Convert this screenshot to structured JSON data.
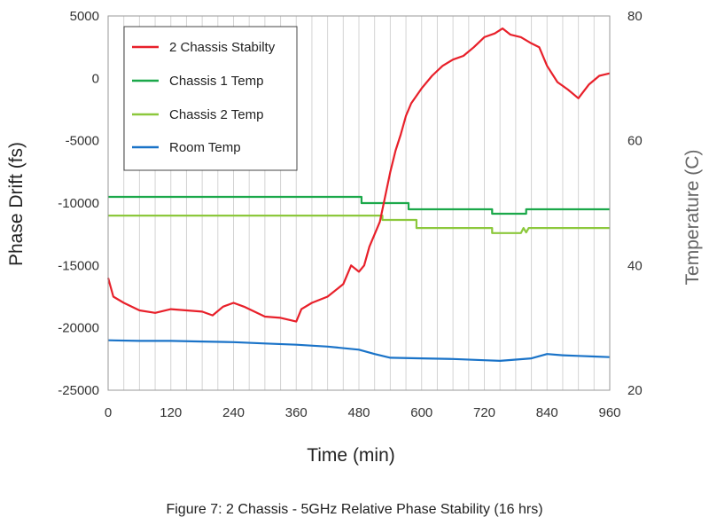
{
  "caption": "Figure 7:  2 Chassis - 5GHz Relative Phase Stability (16 hrs)",
  "chart_data": {
    "type": "line",
    "title": "",
    "xlabel": "Time (min)",
    "ylabel": "Phase Drift (fs)",
    "y2label": "Temperature (C)",
    "xlim": [
      0,
      960
    ],
    "ylim": [
      -25000,
      5000
    ],
    "y2lim": [
      20,
      80
    ],
    "xticks": [
      0,
      120,
      240,
      360,
      480,
      600,
      720,
      840,
      960
    ],
    "yticks": [
      -25000,
      -20000,
      -15000,
      -10000,
      -5000,
      0,
      5000
    ],
    "y2ticks": [
      20,
      40,
      60,
      80
    ],
    "grid": "vertical",
    "legend": "top-left",
    "series": [
      {
        "name": "2 Chassis Stabilty",
        "axis": "left",
        "color": "#e8202a",
        "points": [
          [
            0,
            -16000
          ],
          [
            10,
            -17500
          ],
          [
            30,
            -18000
          ],
          [
            60,
            -18600
          ],
          [
            90,
            -18800
          ],
          [
            120,
            -18500
          ],
          [
            150,
            -18600
          ],
          [
            180,
            -18700
          ],
          [
            200,
            -19000
          ],
          [
            220,
            -18300
          ],
          [
            240,
            -18000
          ],
          [
            260,
            -18300
          ],
          [
            280,
            -18700
          ],
          [
            300,
            -19100
          ],
          [
            330,
            -19200
          ],
          [
            360,
            -19500
          ],
          [
            370,
            -18500
          ],
          [
            390,
            -18000
          ],
          [
            420,
            -17500
          ],
          [
            450,
            -16500
          ],
          [
            465,
            -15000
          ],
          [
            480,
            -15500
          ],
          [
            490,
            -15000
          ],
          [
            500,
            -13500
          ],
          [
            510,
            -12500
          ],
          [
            520,
            -11500
          ],
          [
            530,
            -9500
          ],
          [
            540,
            -7500
          ],
          [
            550,
            -5800
          ],
          [
            560,
            -4500
          ],
          [
            570,
            -3000
          ],
          [
            580,
            -2000
          ],
          [
            600,
            -800
          ],
          [
            620,
            200
          ],
          [
            640,
            1000
          ],
          [
            660,
            1500
          ],
          [
            680,
            1800
          ],
          [
            700,
            2500
          ],
          [
            720,
            3300
          ],
          [
            740,
            3600
          ],
          [
            755,
            4000
          ],
          [
            770,
            3500
          ],
          [
            790,
            3300
          ],
          [
            810,
            2800
          ],
          [
            825,
            2500
          ],
          [
            840,
            1000
          ],
          [
            860,
            -300
          ],
          [
            880,
            -900
          ],
          [
            900,
            -1600
          ],
          [
            920,
            -500
          ],
          [
            940,
            200
          ],
          [
            950,
            300
          ],
          [
            960,
            400
          ]
        ]
      },
      {
        "name": "Chassis 1 Temp",
        "axis": "right",
        "color": "#1ba84a",
        "points": [
          [
            0,
            51
          ],
          [
            485,
            51
          ],
          [
            485,
            50
          ],
          [
            575,
            50
          ],
          [
            575,
            49
          ],
          [
            735,
            49
          ],
          [
            735,
            48.3
          ],
          [
            800,
            48.3
          ],
          [
            800,
            49
          ],
          [
            960,
            49
          ]
        ]
      },
      {
        "name": "Chassis 2 Temp",
        "axis": "right",
        "color": "#8cc83c",
        "points": [
          [
            0,
            48
          ],
          [
            525,
            48
          ],
          [
            525,
            47.3
          ],
          [
            590,
            47.3
          ],
          [
            590,
            46
          ],
          [
            735,
            46
          ],
          [
            735,
            45.2
          ],
          [
            790,
            45.2
          ],
          [
            795,
            46
          ],
          [
            800,
            45.3
          ],
          [
            805,
            46
          ],
          [
            960,
            46
          ]
        ]
      },
      {
        "name": "Room Temp",
        "axis": "right",
        "color": "#1a73c8",
        "points": [
          [
            0,
            28
          ],
          [
            60,
            27.9
          ],
          [
            120,
            27.9
          ],
          [
            180,
            27.8
          ],
          [
            240,
            27.7
          ],
          [
            300,
            27.5
          ],
          [
            360,
            27.3
          ],
          [
            420,
            27
          ],
          [
            480,
            26.5
          ],
          [
            510,
            25.8
          ],
          [
            540,
            25.2
          ],
          [
            600,
            25.1
          ],
          [
            660,
            25
          ],
          [
            720,
            24.8
          ],
          [
            750,
            24.7
          ],
          [
            780,
            24.9
          ],
          [
            810,
            25.1
          ],
          [
            840,
            25.8
          ],
          [
            870,
            25.6
          ],
          [
            900,
            25.5
          ],
          [
            930,
            25.4
          ],
          [
            960,
            25.3
          ]
        ]
      }
    ]
  }
}
